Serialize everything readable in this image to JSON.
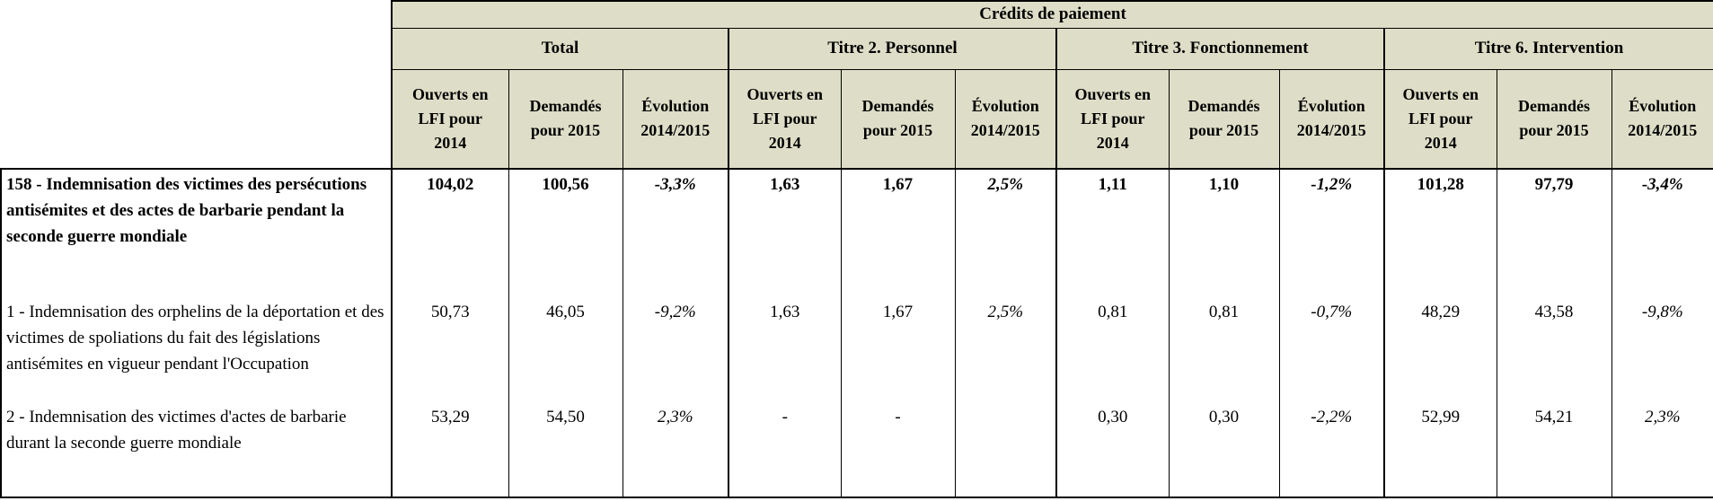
{
  "table": {
    "top_header": "Crédits de paiement",
    "groups": [
      {
        "label": "Total"
      },
      {
        "label": "Titre 2. Personnel"
      },
      {
        "label": "Titre 3. Fonctionnement"
      },
      {
        "label": "Titre 6. Intervention"
      }
    ],
    "sub_headers": [
      "Ouverts en\nLFI pour\n2014",
      "Demandés\npour 2015",
      "Évolution\n2014/2015"
    ],
    "rows": [
      {
        "label": "158 - Indemnisation des victimes des persécutions antisémites et des actes de barbarie pendant la seconde guerre mondiale",
        "bold": true,
        "values": [
          "104,02",
          "100,56",
          "-3,3%",
          "1,63",
          "1,67",
          "2,5%",
          "1,11",
          "1,10",
          "-1,2%",
          "101,28",
          "97,79",
          "-3,4%"
        ]
      },
      {
        "label": "1 - Indemnisation des orphelins de la déportation et des victimes de spoliations du fait des législations antisémites en vigueur pendant l'Occupation",
        "bold": false,
        "values": [
          "50,73",
          "46,05",
          "-9,2%",
          "1,63",
          "1,67",
          "2,5%",
          "0,81",
          "0,81",
          "-0,7%",
          "48,29",
          "43,58",
          "-9,8%"
        ]
      },
      {
        "label": "2 - Indemnisation des victimes d'actes de barbarie durant la seconde guerre mondiale",
        "bold": false,
        "values": [
          "53,29",
          "54,50",
          "2,3%",
          "-",
          "-",
          "",
          "0,30",
          "0,30",
          "-2,2%",
          "52,99",
          "54,21",
          "2,3%"
        ]
      }
    ],
    "colors": {
      "header_bg": "#dedec8",
      "border": "#000000"
    }
  }
}
